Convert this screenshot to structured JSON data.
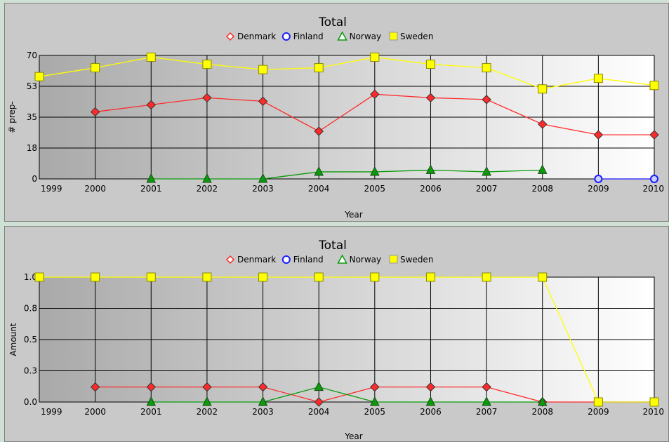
{
  "colors": {
    "Denmark": "#ff2a2a",
    "Finland": "#1a1aff",
    "Norway": "#0a9a0a",
    "Sweden": "#ffff00",
    "panel_background": "#c9c9c9",
    "plot_gradient": [
      "#a9a9a9",
      "#ffffff"
    ]
  },
  "chart_data": [
    {
      "type": "line",
      "title": "Total",
      "xlabel": "Year",
      "ylabel": "# prep-",
      "legend_placement": "top-center",
      "grid": true,
      "x": [
        "1999",
        "2000",
        "2001",
        "2002",
        "2003",
        "2004",
        "2005",
        "2006",
        "2007",
        "2008",
        "2009",
        "2010"
      ],
      "ylim": [
        0,
        70
      ],
      "yticks": [
        "0",
        "18",
        "35",
        "53",
        "70"
      ],
      "series": [
        {
          "name": "Denmark",
          "marker": "diamond",
          "values": [
            null,
            38,
            42,
            46,
            44,
            27,
            48,
            46,
            45,
            31,
            25,
            25
          ]
        },
        {
          "name": "Finland",
          "marker": "circle",
          "values": [
            null,
            null,
            null,
            null,
            null,
            null,
            null,
            null,
            null,
            null,
            0,
            0
          ]
        },
        {
          "name": "Norway",
          "marker": "triangle",
          "values": [
            null,
            null,
            0,
            0,
            0,
            4,
            4,
            5,
            4,
            5,
            null,
            null
          ]
        },
        {
          "name": "Sweden",
          "marker": "square",
          "values": [
            58,
            63,
            69,
            65,
            62,
            63,
            69,
            65,
            63,
            51,
            57,
            53
          ]
        }
      ]
    },
    {
      "type": "line",
      "title": "Total",
      "xlabel": "Year",
      "ylabel": "Amount",
      "legend_placement": "top-center",
      "grid": true,
      "x": [
        "1999",
        "2000",
        "2001",
        "2002",
        "2003",
        "2004",
        "2005",
        "2006",
        "2007",
        "2008",
        "2009",
        "2010"
      ],
      "ylim": [
        0,
        1
      ],
      "yticks": [
        "0.0",
        "0.3",
        "0.5",
        "0.8",
        "1.0"
      ],
      "series": [
        {
          "name": "Denmark",
          "marker": "diamond",
          "values": [
            null,
            0.12,
            0.12,
            0.12,
            0.12,
            0,
            0.12,
            0.12,
            0.12,
            0,
            0,
            0
          ]
        },
        {
          "name": "Finland",
          "marker": "circle",
          "values": [
            null,
            null,
            null,
            null,
            null,
            null,
            null,
            null,
            null,
            null,
            0,
            0
          ]
        },
        {
          "name": "Norway",
          "marker": "triangle",
          "values": [
            null,
            null,
            0,
            0,
            0,
            0.12,
            0,
            0,
            0,
            0,
            null,
            null
          ]
        },
        {
          "name": "Sweden",
          "marker": "square",
          "values": [
            1,
            1,
            1,
            1,
            1,
            1,
            1,
            1,
            1,
            1,
            0,
            0
          ]
        }
      ]
    }
  ]
}
